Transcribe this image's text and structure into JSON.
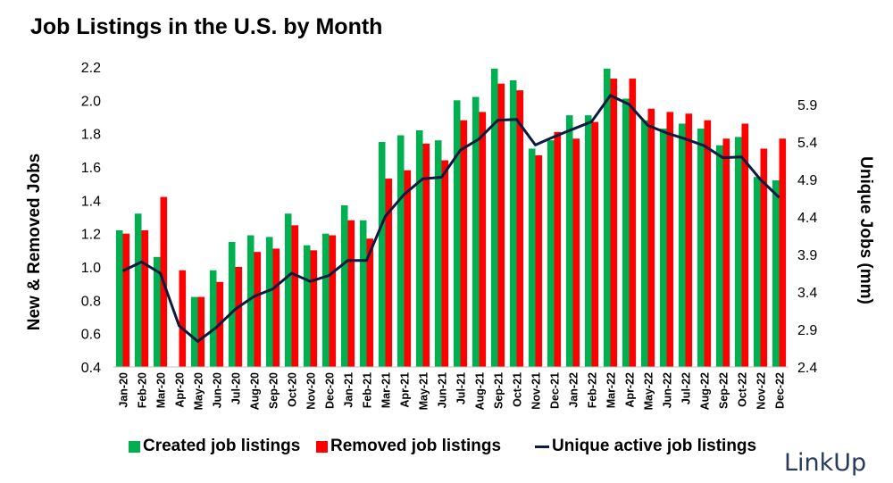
{
  "chart_data": {
    "type": "bar",
    "title": "Job Listings in the U.S. by Month",
    "ylabel": "New & Removed Jobs",
    "y2label": "Unique Jobs (mm)",
    "ylim": [
      0.4,
      2.2
    ],
    "y_ticks": [
      "0.4",
      "0.6",
      "0.8",
      "1.0",
      "1.2",
      "1.4",
      "1.6",
      "1.8",
      "2.0",
      "2.2"
    ],
    "y2lim": [
      2.4,
      6.4
    ],
    "y2_ticks": [
      "2.4",
      "2.9",
      "3.4",
      "3.9",
      "4.4",
      "4.9",
      "5.4",
      "5.9"
    ],
    "categories": [
      "Jan-20",
      "Feb-20",
      "Mar-20",
      "Apr-20",
      "May-20",
      "Jun-20",
      "Jul-20",
      "Aug-20",
      "Sep-20",
      "Oct-20",
      "Nov-20",
      "Dec-20",
      "Jan-21",
      "Feb-21",
      "Mar-21",
      "Apr-21",
      "May-21",
      "Jun-21",
      "Jul-21",
      "Aug-21",
      "Sep-21",
      "Oct-21",
      "Nov-21",
      "Dec-21",
      "Jan-22",
      "Feb-22",
      "Mar-22",
      "Apr-22",
      "May-22",
      "Jun-22",
      "Jul-22",
      "Aug-22",
      "Sep-22",
      "Oct-22",
      "Nov-22",
      "Dec-22"
    ],
    "series": [
      {
        "name": "Created job listings",
        "type": "bar",
        "color": "#00b050",
        "axis": "left",
        "values": [
          1.22,
          1.32,
          1.06,
          0.33,
          0.82,
          0.98,
          1.15,
          1.19,
          1.18,
          1.32,
          1.13,
          1.2,
          1.37,
          1.28,
          1.75,
          1.79,
          1.82,
          1.76,
          2.0,
          2.02,
          2.19,
          2.12,
          1.71,
          1.76,
          1.91,
          1.91,
          2.19,
          2.01,
          1.88,
          1.83,
          1.86,
          1.83,
          1.73,
          1.78,
          1.54,
          1.52
        ]
      },
      {
        "name": "Removed job listings",
        "type": "bar",
        "color": "#ff0000",
        "axis": "left",
        "values": [
          1.2,
          1.22,
          1.42,
          0.98,
          0.82,
          0.91,
          1.0,
          1.09,
          1.11,
          1.25,
          1.1,
          1.19,
          1.28,
          1.17,
          1.53,
          1.58,
          1.74,
          1.64,
          1.88,
          1.93,
          2.1,
          2.06,
          1.67,
          1.81,
          1.77,
          1.87,
          2.13,
          2.13,
          1.95,
          1.93,
          1.92,
          1.88,
          1.77,
          1.86,
          1.71,
          1.77
        ]
      },
      {
        "name": "Unique active job listings",
        "type": "line",
        "color": "#0d1b3e",
        "axis": "right",
        "values": [
          3.68,
          3.8,
          3.65,
          2.95,
          2.74,
          2.93,
          3.17,
          3.34,
          3.44,
          3.65,
          3.54,
          3.62,
          3.82,
          3.82,
          4.41,
          4.7,
          4.91,
          4.93,
          5.29,
          5.44,
          5.69,
          5.7,
          5.36,
          5.47,
          5.57,
          5.67,
          6.02,
          5.9,
          5.62,
          5.52,
          5.44,
          5.35,
          5.19,
          5.2,
          4.9,
          4.66
        ]
      }
    ],
    "legend": "bottom",
    "grid": false
  },
  "logo_text": "LinkUp"
}
